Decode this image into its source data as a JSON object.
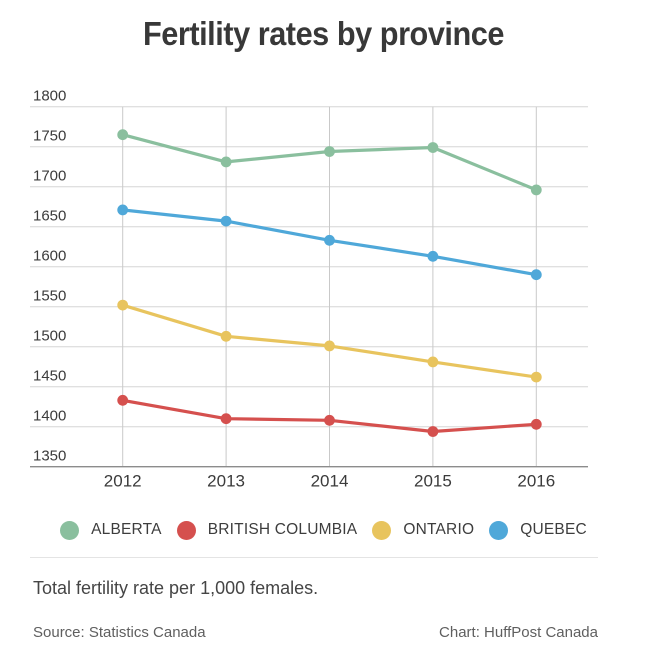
{
  "title": "Fertility rates by province",
  "chart_data": {
    "type": "line",
    "title": "Fertility rates by province",
    "categories": [
      "2012",
      "2013",
      "2014",
      "2015",
      "2016"
    ],
    "x": [
      2012,
      2013,
      2014,
      2015,
      2016
    ],
    "series": [
      {
        "name": "ALBERTA",
        "color": "#8abf9e",
        "values": [
          1765,
          1731,
          1744,
          1749,
          1696
        ]
      },
      {
        "name": "BRITISH COLUMBIA",
        "color": "#d5504e",
        "values": [
          1433,
          1410,
          1408,
          1394,
          1403
        ]
      },
      {
        "name": "ONTARIO",
        "color": "#e8c45e",
        "values": [
          1552,
          1513,
          1501,
          1481,
          1462
        ]
      },
      {
        "name": "QUEBEC",
        "color": "#4fa8d9",
        "values": [
          1671,
          1657,
          1633,
          1613,
          1590
        ]
      }
    ],
    "ylim": [
      1350,
      1800
    ],
    "yticks": [
      1800,
      1750,
      1700,
      1650,
      1600,
      1550,
      1500,
      1450,
      1400,
      1350
    ],
    "ylabel": "",
    "xlabel": "",
    "grid": true,
    "legend_position": "bottom"
  },
  "footer": {
    "note": "Total fertility rate per 1,000 females.",
    "source": "Source: Statistics Canada",
    "credit": "Chart: HuffPost Canada"
  }
}
